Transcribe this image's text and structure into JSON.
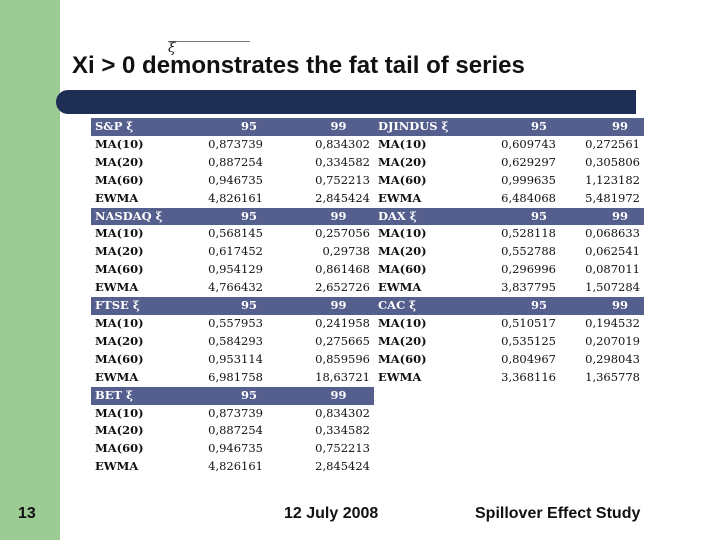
{
  "slide": {
    "title": "Xi > 0 demonstrates the fat tail of series",
    "title_symbol": "ξ",
    "page_number": "13",
    "date": "12 July 2008",
    "study": "Spillover Effect Study"
  },
  "colors": {
    "left_band": "#9ccc94",
    "title_bar": "#1f2e54",
    "header_row": "#555f8e"
  },
  "xi_symbol": "ξ",
  "blocks": [
    {
      "left": {
        "index": "S&P",
        "c95": "95",
        "c99": "99",
        "rows": [
          {
            "label": "MA(10)",
            "v95": "0,873739",
            "v99": "0,834302"
          },
          {
            "label": "MA(20)",
            "v95": "0,887254",
            "v99": "0,334582"
          },
          {
            "label": "MA(60)",
            "v95": "0,946735",
            "v99": "0,752213"
          },
          {
            "label": "EWMA",
            "v95": "4,826161",
            "v99": "2,845424"
          }
        ]
      },
      "right": {
        "index": "DJINDUS",
        "c95": "95",
        "c99": "99",
        "rows": [
          {
            "label": "MA(10)",
            "v95": "0,609743",
            "v99": "0,272561"
          },
          {
            "label": "MA(20)",
            "v95": "0,629297",
            "v99": "0,305806"
          },
          {
            "label": "MA(60)",
            "v95": "0,999635",
            "v99": "1,123182"
          },
          {
            "label": "EWMA",
            "v95": "6,484068",
            "v99": "5,481972"
          }
        ]
      }
    },
    {
      "left": {
        "index": "NASDAQ",
        "c95": "95",
        "c99": "99",
        "rows": [
          {
            "label": "MA(10)",
            "v95": "0,568145",
            "v99": "0,257056"
          },
          {
            "label": "MA(20)",
            "v95": "0,617452",
            "v99": "0,29738"
          },
          {
            "label": "MA(60)",
            "v95": "0,954129",
            "v99": "0,861468"
          },
          {
            "label": "EWMA",
            "v95": "4,766432",
            "v99": "2,652726"
          }
        ]
      },
      "right": {
        "index": "DAX",
        "c95": "95",
        "c99": "99",
        "rows": [
          {
            "label": "MA(10)",
            "v95": "0,528118",
            "v99": "0,068633"
          },
          {
            "label": "MA(20)",
            "v95": "0,552788",
            "v99": "0,062541"
          },
          {
            "label": "MA(60)",
            "v95": "0,296996",
            "v99": "0,087011"
          },
          {
            "label": "EWMA",
            "v95": "3,837795",
            "v99": "1,507284"
          }
        ]
      }
    },
    {
      "left": {
        "index": "FTSE",
        "c95": "95",
        "c99": "99",
        "rows": [
          {
            "label": "MA(10)",
            "v95": "0,557953",
            "v99": "0,241958"
          },
          {
            "label": "MA(20)",
            "v95": "0,584293",
            "v99": "0,275665"
          },
          {
            "label": "MA(60)",
            "v95": "0,953114",
            "v99": "0,859596"
          },
          {
            "label": "EWMA",
            "v95": "6,981758",
            "v99": "18,63721"
          }
        ]
      },
      "right": {
        "index": "CAC",
        "c95": "95",
        "c99": "99",
        "rows": [
          {
            "label": "MA(10)",
            "v95": "0,510517",
            "v99": "0,194532"
          },
          {
            "label": "MA(20)",
            "v95": "0,535125",
            "v99": "0,207019"
          },
          {
            "label": "MA(60)",
            "v95": "0,804967",
            "v99": "0,298043"
          },
          {
            "label": "EWMA",
            "v95": "3,368116",
            "v99": "1,365778"
          }
        ]
      }
    },
    {
      "left": {
        "index": "BET",
        "c95": "95",
        "c99": "99",
        "rows": [
          {
            "label": "MA(10)",
            "v95": "0,873739",
            "v99": "0,834302"
          },
          {
            "label": "MA(20)",
            "v95": "0,887254",
            "v99": "0,334582"
          },
          {
            "label": "MA(60)",
            "v95": "0,946735",
            "v99": "0,752213"
          },
          {
            "label": "EWMA",
            "v95": "4,826161",
            "v99": "2,845424"
          }
        ]
      },
      "right": null
    }
  ]
}
